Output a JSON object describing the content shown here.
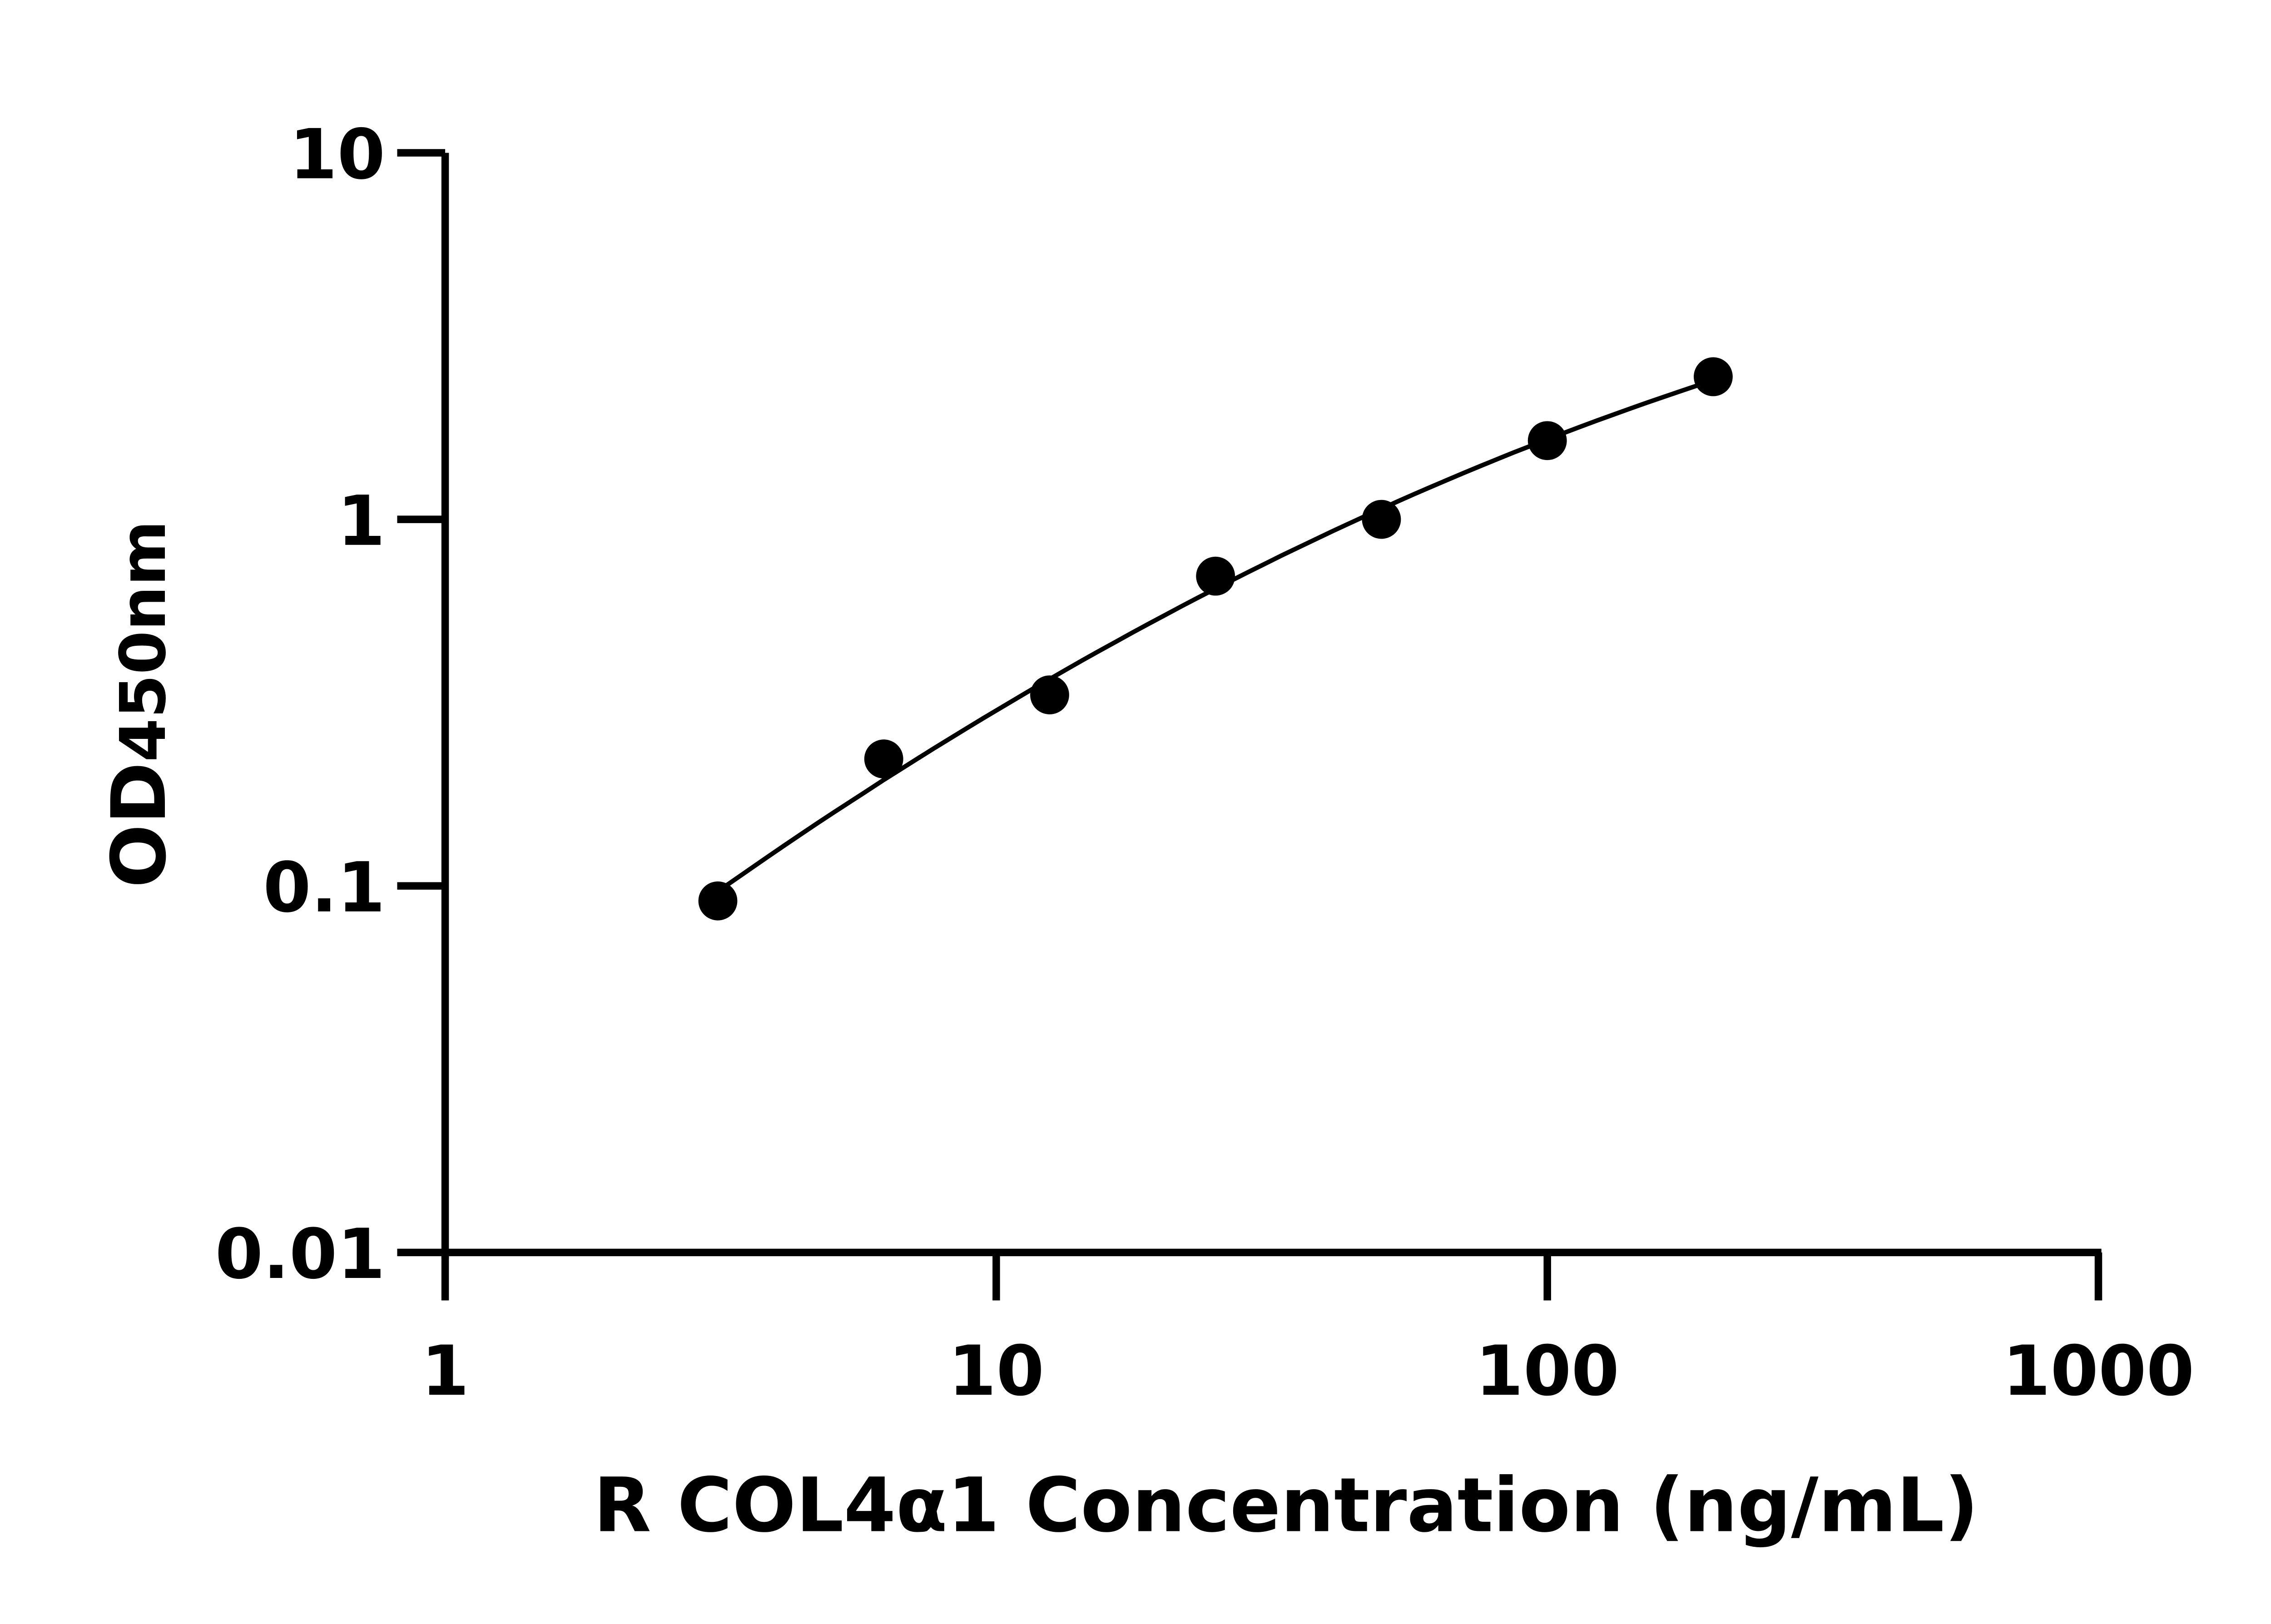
{
  "chart_data": {
    "type": "scatter",
    "title": "",
    "xlabel": "R COL4α1 Concentration (ng/mL)",
    "ylabel_main": "OD",
    "ylabel_sub": "450nm",
    "x_scale": "log",
    "y_scale": "log",
    "xlim": [
      1,
      1000
    ],
    "ylim": [
      0.01,
      10
    ],
    "x_ticks": [
      "1",
      "10",
      "100",
      "1000"
    ],
    "y_ticks": [
      "0.01",
      "0.1",
      "1",
      "10"
    ],
    "grid": false,
    "legend": "none",
    "fit_line": true,
    "color": "#000000",
    "points": [
      {
        "x": 3.125,
        "y": 0.091
      },
      {
        "x": 6.25,
        "y": 0.222
      },
      {
        "x": 12.5,
        "y": 0.332
      },
      {
        "x": 25,
        "y": 0.7
      },
      {
        "x": 50,
        "y": 1.0
      },
      {
        "x": 100,
        "y": 1.64
      },
      {
        "x": 200,
        "y": 2.45
      }
    ]
  }
}
